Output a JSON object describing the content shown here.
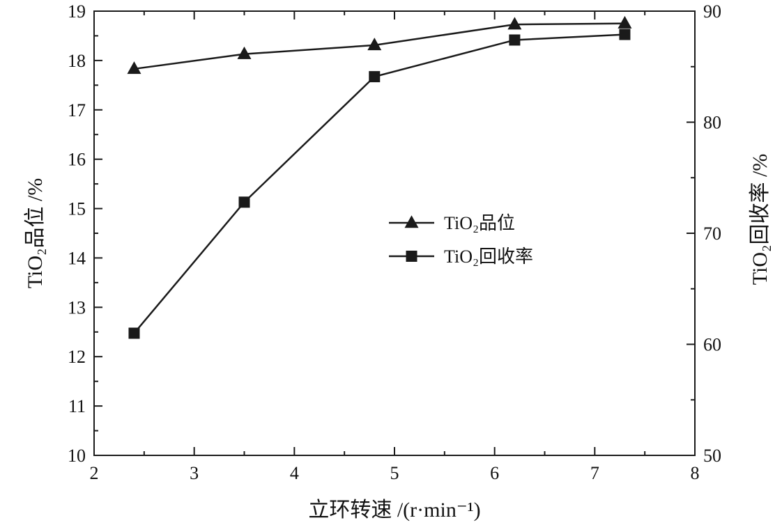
{
  "chart_data": {
    "type": "line",
    "xlabel": "立环转速 /(r·min⁻¹)",
    "ylabel_left": "TiO₂品位 /%",
    "ylabel_right": "TiO₂回收率 /%",
    "xlim": [
      2,
      8
    ],
    "ylim_left": [
      10,
      19
    ],
    "ylim_right": [
      50,
      90
    ],
    "x_ticks": [
      2,
      3,
      4,
      5,
      6,
      7,
      8
    ],
    "y_left_ticks": [
      10,
      11,
      12,
      13,
      14,
      15,
      16,
      17,
      18,
      19
    ],
    "y_right_ticks": [
      50,
      60,
      70,
      80,
      90
    ],
    "grid": false,
    "legend_position": "center",
    "series": [
      {
        "name": "TiO₂品位",
        "axis": "left",
        "marker": "triangle",
        "x": [
          2.4,
          3.5,
          4.8,
          6.2,
          7.3
        ],
        "values": [
          17.83,
          18.13,
          18.31,
          18.73,
          18.75
        ]
      },
      {
        "name": "TiO₂回收率",
        "axis": "right",
        "marker": "square",
        "x": [
          2.4,
          3.5,
          4.8,
          6.2,
          7.3
        ],
        "values": [
          61.0,
          72.8,
          84.1,
          87.4,
          87.9
        ]
      }
    ],
    "colors": {
      "line": "#1a1a1a",
      "marker": "#1a1a1a"
    }
  }
}
